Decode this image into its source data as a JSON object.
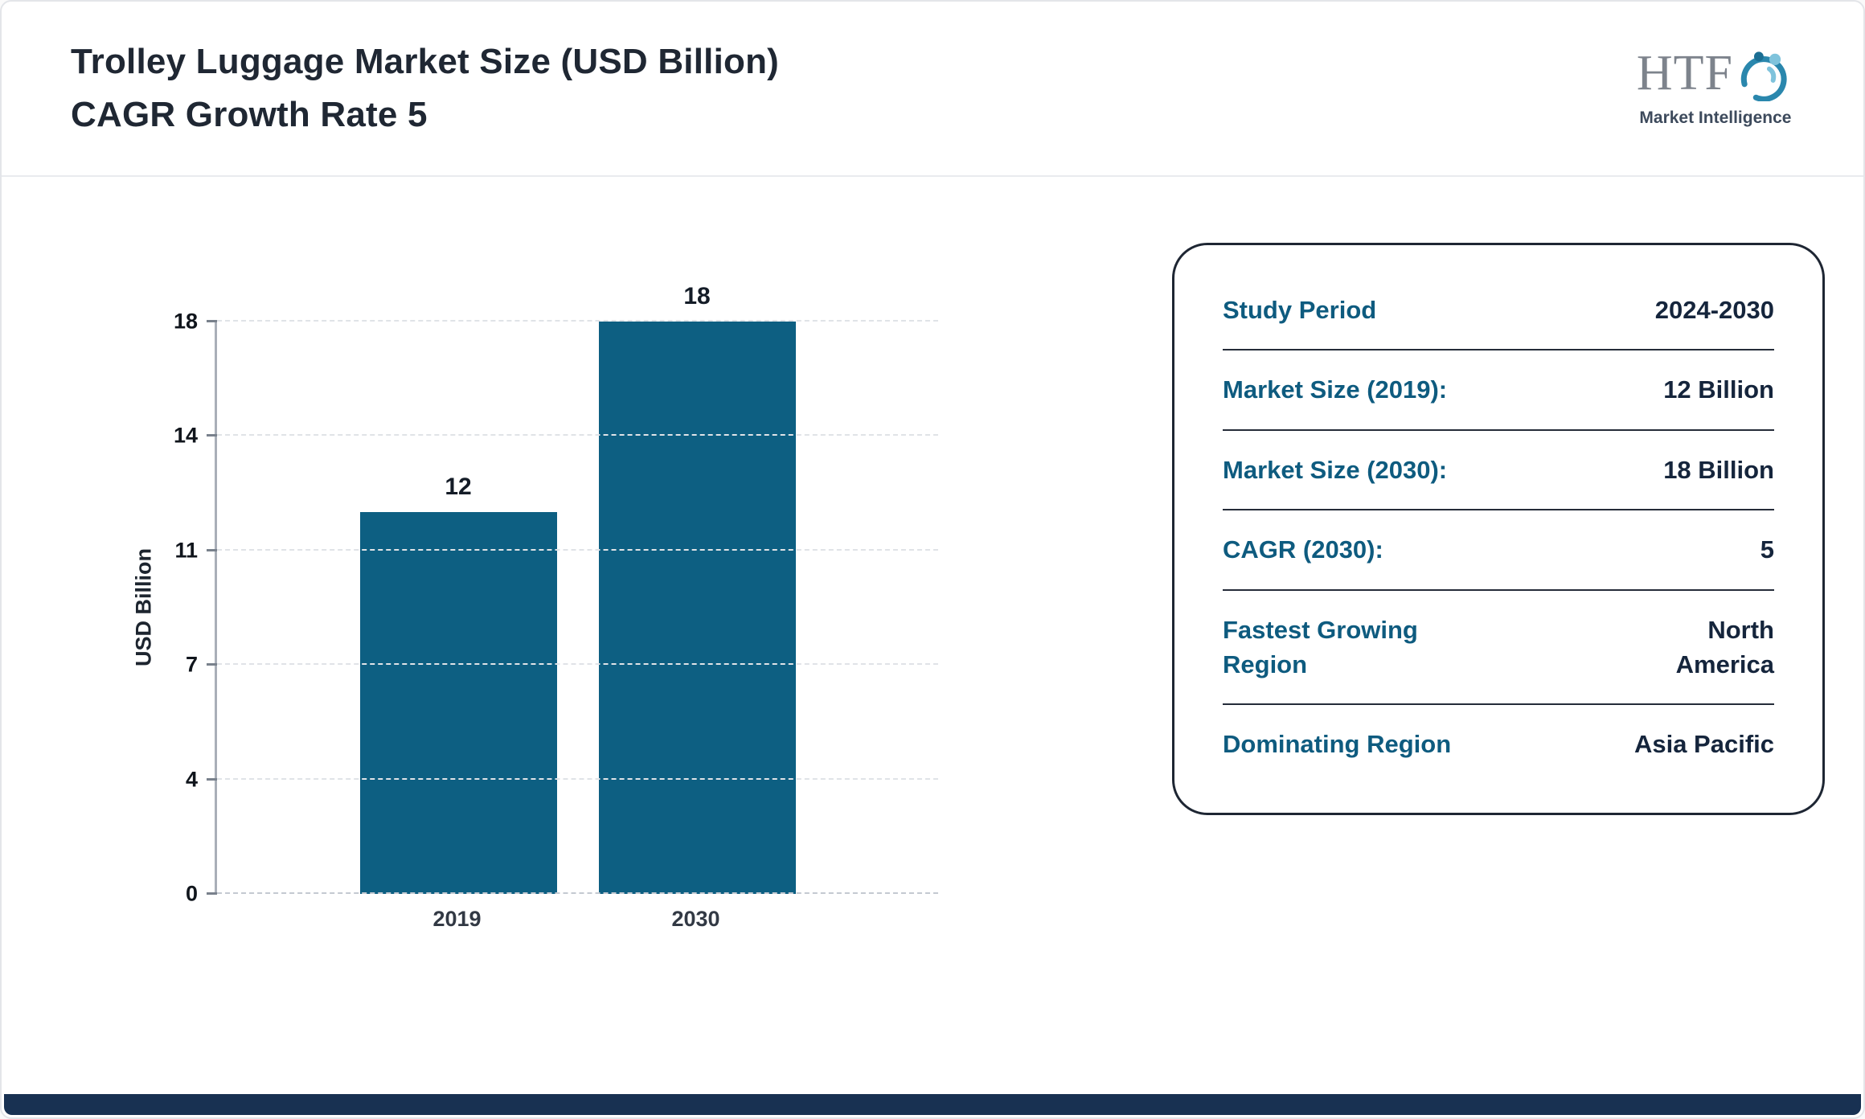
{
  "header": {
    "title_line1": "Trolley Luggage Market Size (USD Billion)",
    "title_line2": "CAGR Growth Rate 5",
    "logo": {
      "text": "HTF",
      "caption": "Market Intelligence",
      "icon": "swoosh-people-icon"
    }
  },
  "chart_data": {
    "type": "bar",
    "categories": [
      "2019",
      "2030"
    ],
    "values": [
      12,
      18
    ],
    "data_labels": [
      "12",
      "18"
    ],
    "title": "Trolley Luggage Market Size (USD Billion) CAGR Growth Rate 5",
    "xlabel": "",
    "ylabel": "USD Billion",
    "yticks": [
      0,
      4,
      7,
      11,
      14,
      18
    ],
    "ylim": [
      0,
      18
    ],
    "bar_color": "#0d5f82",
    "grid": "dashed-horizontal",
    "legend": "none"
  },
  "info_card": {
    "rows": [
      {
        "label": "Study Period",
        "value": "2024-2030"
      },
      {
        "label": "Market Size (2019):",
        "value": "12 Billion"
      },
      {
        "label": "Market Size (2030):",
        "value": "18 Billion"
      },
      {
        "label": "CAGR (2030):",
        "value": "5"
      },
      {
        "label": "Fastest Growing\nRegion",
        "value": "North\nAmerica"
      },
      {
        "label": "Dominating Region",
        "value": "Asia Pacific"
      }
    ]
  },
  "colors": {
    "accent_teal": "#0e5b7f",
    "value_navy": "#15253c",
    "bar_teal": "#0d5f82",
    "footer_navy": "#183152",
    "card_border": "#1e2633"
  }
}
